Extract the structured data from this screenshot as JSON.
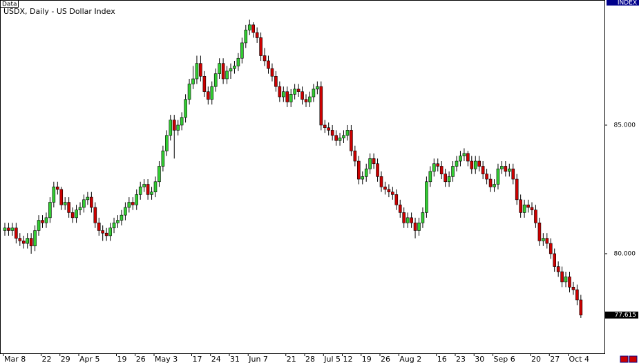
{
  "chart_data": {
    "type": "candlestick",
    "data_label": "Data",
    "title": "USDX, Daily - US Dollar Index",
    "axis_title": "INDEX",
    "last_price": 77.615,
    "up_color": "#32cd32",
    "down_color": "#cc0000",
    "ylim": [
      76.1,
      89.65
    ],
    "yticks": [
      {
        "value": 85,
        "label": "85.000"
      },
      {
        "value": 80,
        "label": "80.000"
      }
    ],
    "categories": [
      "Mar 8",
      null,
      null,
      null,
      null,
      null,
      null,
      null,
      null,
      null,
      "22",
      null,
      null,
      null,
      null,
      "29",
      null,
      null,
      null,
      null,
      "Apr 5",
      null,
      null,
      null,
      null,
      null,
      null,
      null,
      null,
      null,
      "19",
      null,
      null,
      null,
      null,
      "26",
      null,
      null,
      null,
      null,
      "May 3",
      null,
      null,
      null,
      null,
      null,
      null,
      null,
      null,
      null,
      "17",
      null,
      null,
      null,
      null,
      "24",
      null,
      null,
      null,
      null,
      "31",
      null,
      null,
      null,
      null,
      "Jun 7",
      null,
      null,
      null,
      null,
      null,
      null,
      null,
      null,
      null,
      "21",
      null,
      null,
      null,
      null,
      "28",
      null,
      null,
      null,
      null,
      "Jul 5",
      null,
      null,
      null,
      null,
      "12",
      null,
      null,
      null,
      null,
      "19",
      null,
      null,
      null,
      null,
      "26",
      null,
      null,
      null,
      null,
      "Aug 2",
      null,
      null,
      null,
      null,
      null,
      null,
      null,
      null,
      null,
      "16",
      null,
      null,
      null,
      null,
      "23",
      null,
      null,
      null,
      null,
      "30",
      null,
      null,
      null,
      null,
      "Sep 6",
      null,
      null,
      null,
      null,
      null,
      null,
      null,
      null,
      null,
      "20",
      null,
      null,
      null,
      null,
      "27",
      null,
      null,
      null,
      null,
      "Oct 4",
      null,
      null,
      null
    ],
    "ohlc": [
      [
        80.9,
        81.2,
        80.7,
        81.0
      ],
      [
        81.0,
        81.2,
        80.7,
        80.9
      ],
      [
        80.9,
        81.2,
        80.7,
        81.0
      ],
      [
        81.0,
        81.2,
        80.4,
        80.6
      ],
      [
        80.6,
        80.8,
        80.3,
        80.5
      ],
      [
        80.5,
        80.7,
        80.2,
        80.4
      ],
      [
        80.4,
        80.8,
        80.2,
        80.6
      ],
      [
        80.6,
        80.8,
        80.0,
        80.3
      ],
      [
        80.3,
        81.1,
        80.1,
        80.9
      ],
      [
        80.9,
        81.5,
        80.7,
        81.3
      ],
      [
        81.3,
        81.5,
        81.0,
        81.2
      ],
      [
        81.2,
        81.6,
        81.0,
        81.4
      ],
      [
        81.4,
        82.2,
        81.2,
        82.0
      ],
      [
        82.0,
        82.8,
        81.8,
        82.6
      ],
      [
        82.6,
        82.8,
        82.3,
        82.5
      ],
      [
        82.5,
        82.6,
        81.7,
        81.9
      ],
      [
        81.9,
        82.2,
        81.7,
        82.0
      ],
      [
        82.0,
        82.2,
        81.4,
        81.6
      ],
      [
        81.6,
        81.8,
        81.2,
        81.4
      ],
      [
        81.4,
        81.9,
        81.2,
        81.7
      ],
      [
        81.7,
        82.0,
        81.5,
        81.8
      ],
      [
        81.8,
        82.3,
        81.6,
        82.1
      ],
      [
        82.1,
        82.4,
        81.9,
        82.2
      ],
      [
        82.2,
        82.4,
        81.6,
        81.8
      ],
      [
        81.8,
        82.0,
        81.0,
        81.2
      ],
      [
        81.2,
        81.4,
        80.7,
        80.9
      ],
      [
        80.9,
        81.1,
        80.5,
        80.8
      ],
      [
        80.8,
        81.0,
        80.5,
        80.7
      ],
      [
        80.7,
        81.2,
        80.5,
        81.0
      ],
      [
        81.0,
        81.4,
        80.8,
        81.2
      ],
      [
        81.2,
        81.5,
        81.0,
        81.3
      ],
      [
        81.3,
        81.7,
        81.1,
        81.5
      ],
      [
        81.5,
        82.0,
        81.3,
        81.8
      ],
      [
        81.8,
        82.2,
        81.6,
        82.0
      ],
      [
        82.0,
        82.2,
        81.7,
        81.9
      ],
      [
        81.9,
        82.5,
        81.7,
        82.3
      ],
      [
        82.3,
        82.8,
        82.1,
        82.6
      ],
      [
        82.6,
        82.9,
        82.4,
        82.7
      ],
      [
        82.7,
        82.9,
        82.1,
        82.3
      ],
      [
        82.3,
        82.6,
        82.1,
        82.4
      ],
      [
        82.4,
        83.0,
        82.2,
        82.8
      ],
      [
        82.8,
        83.6,
        82.6,
        83.4
      ],
      [
        83.4,
        84.2,
        83.2,
        84.0
      ],
      [
        84.0,
        84.8,
        83.8,
        84.6
      ],
      [
        84.6,
        85.4,
        84.4,
        85.2
      ],
      [
        85.2,
        85.4,
        83.7,
        84.8
      ],
      [
        84.8,
        85.2,
        84.6,
        85.0
      ],
      [
        85.0,
        85.5,
        84.8,
        85.3
      ],
      [
        85.3,
        86.2,
        85.1,
        86.0
      ],
      [
        86.0,
        86.8,
        85.8,
        86.6
      ],
      [
        86.6,
        87.3,
        86.4,
        86.8
      ],
      [
        86.8,
        87.7,
        86.6,
        87.4
      ],
      [
        87.4,
        87.7,
        86.7,
        86.9
      ],
      [
        86.9,
        87.1,
        86.1,
        86.3
      ],
      [
        86.3,
        86.5,
        85.8,
        86.0
      ],
      [
        86.0,
        86.7,
        85.8,
        86.5
      ],
      [
        86.5,
        87.2,
        86.3,
        87.0
      ],
      [
        87.0,
        87.6,
        86.8,
        87.4
      ],
      [
        87.4,
        87.6,
        86.6,
        86.8
      ],
      [
        86.8,
        87.3,
        86.6,
        87.1
      ],
      [
        87.1,
        87.4,
        86.8,
        87.2
      ],
      [
        87.2,
        87.5,
        87.0,
        87.3
      ],
      [
        87.3,
        87.8,
        87.1,
        87.6
      ],
      [
        87.6,
        88.4,
        87.4,
        88.2
      ],
      [
        88.2,
        88.9,
        88.0,
        88.7
      ],
      [
        88.7,
        89.1,
        88.5,
        88.9
      ],
      [
        88.9,
        89.0,
        88.4,
        88.6
      ],
      [
        88.6,
        88.8,
        88.2,
        88.4
      ],
      [
        88.4,
        88.6,
        87.5,
        87.7
      ],
      [
        87.7,
        88.0,
        87.3,
        87.5
      ],
      [
        87.5,
        87.7,
        87.0,
        87.2
      ],
      [
        87.2,
        87.4,
        86.7,
        86.9
      ],
      [
        86.9,
        87.1,
        86.3,
        86.5
      ],
      [
        86.5,
        86.7,
        85.9,
        86.1
      ],
      [
        86.1,
        86.5,
        85.9,
        86.3
      ],
      [
        86.3,
        86.5,
        85.7,
        85.9
      ],
      [
        85.9,
        86.4,
        85.7,
        86.2
      ],
      [
        86.2,
        86.6,
        86.0,
        86.4
      ],
      [
        86.4,
        86.6,
        86.1,
        86.3
      ],
      [
        86.3,
        86.5,
        85.8,
        86.0
      ],
      [
        86.0,
        86.2,
        85.7,
        85.9
      ],
      [
        85.9,
        86.3,
        85.7,
        86.1
      ],
      [
        86.1,
        86.6,
        85.9,
        86.4
      ],
      [
        86.4,
        86.7,
        86.2,
        86.5
      ],
      [
        86.5,
        86.7,
        84.8,
        85.0
      ],
      [
        85.0,
        85.2,
        84.7,
        84.9
      ],
      [
        84.9,
        85.1,
        84.6,
        84.8
      ],
      [
        84.8,
        85.0,
        84.4,
        84.6
      ],
      [
        84.6,
        84.8,
        84.2,
        84.4
      ],
      [
        84.4,
        84.7,
        84.2,
        84.5
      ],
      [
        84.5,
        84.8,
        84.3,
        84.6
      ],
      [
        84.6,
        85.0,
        84.4,
        84.8
      ],
      [
        84.8,
        85.0,
        83.8,
        84.0
      ],
      [
        84.0,
        84.2,
        83.4,
        83.6
      ],
      [
        83.6,
        83.8,
        82.7,
        82.9
      ],
      [
        82.9,
        83.2,
        82.7,
        83.0
      ],
      [
        83.0,
        83.5,
        82.8,
        83.3
      ],
      [
        83.3,
        83.9,
        83.1,
        83.7
      ],
      [
        83.7,
        83.9,
        83.3,
        83.5
      ],
      [
        83.5,
        83.7,
        82.8,
        83.0
      ],
      [
        83.0,
        83.2,
        82.4,
        82.6
      ],
      [
        82.6,
        82.8,
        82.3,
        82.5
      ],
      [
        82.5,
        82.7,
        82.2,
        82.4
      ],
      [
        82.4,
        82.6,
        82.1,
        82.3
      ],
      [
        82.3,
        82.5,
        81.7,
        81.9
      ],
      [
        81.9,
        82.1,
        81.4,
        81.6
      ],
      [
        81.6,
        81.8,
        81.0,
        81.2
      ],
      [
        81.2,
        81.6,
        81.0,
        81.4
      ],
      [
        81.4,
        81.6,
        81.0,
        81.2
      ],
      [
        81.2,
        81.4,
        80.6,
        80.9
      ],
      [
        80.9,
        81.4,
        80.7,
        81.2
      ],
      [
        81.2,
        81.8,
        81.0,
        81.6
      ],
      [
        81.6,
        83.0,
        81.4,
        82.8
      ],
      [
        82.8,
        83.4,
        82.6,
        83.2
      ],
      [
        83.2,
        83.7,
        83.0,
        83.5
      ],
      [
        83.5,
        83.7,
        83.2,
        83.4
      ],
      [
        83.4,
        83.6,
        82.9,
        83.1
      ],
      [
        83.1,
        83.3,
        82.6,
        82.8
      ],
      [
        82.8,
        83.2,
        82.6,
        83.0
      ],
      [
        83.0,
        83.6,
        82.8,
        83.4
      ],
      [
        83.4,
        83.8,
        83.2,
        83.6
      ],
      [
        83.6,
        84.0,
        83.4,
        83.8
      ],
      [
        83.8,
        84.1,
        83.6,
        83.9
      ],
      [
        83.9,
        84.0,
        83.4,
        83.6
      ],
      [
        83.6,
        83.8,
        83.1,
        83.3
      ],
      [
        83.3,
        83.8,
        83.1,
        83.6
      ],
      [
        83.6,
        83.8,
        83.2,
        83.4
      ],
      [
        83.4,
        83.6,
        82.9,
        83.1
      ],
      [
        83.1,
        83.3,
        82.7,
        82.9
      ],
      [
        82.9,
        83.1,
        82.4,
        82.6
      ],
      [
        82.6,
        82.9,
        82.4,
        82.7
      ],
      [
        82.7,
        83.5,
        82.5,
        83.3
      ],
      [
        83.3,
        83.6,
        83.1,
        83.4
      ],
      [
        83.4,
        83.6,
        83.0,
        83.2
      ],
      [
        83.2,
        83.5,
        83.0,
        83.3
      ],
      [
        83.3,
        83.5,
        82.7,
        82.9
      ],
      [
        82.9,
        83.1,
        81.9,
        82.1
      ],
      [
        82.1,
        82.3,
        81.4,
        81.6
      ],
      [
        81.6,
        82.1,
        81.4,
        81.9
      ],
      [
        81.9,
        82.1,
        81.6,
        81.8
      ],
      [
        81.8,
        82.0,
        81.5,
        81.7
      ],
      [
        81.7,
        81.9,
        81.0,
        81.2
      ],
      [
        81.2,
        81.4,
        80.3,
        80.5
      ],
      [
        80.5,
        80.8,
        80.3,
        80.6
      ],
      [
        80.6,
        80.8,
        80.2,
        80.4
      ],
      [
        80.4,
        80.6,
        79.8,
        80.0
      ],
      [
        80.0,
        80.2,
        79.3,
        79.5
      ],
      [
        79.5,
        79.7,
        79.1,
        79.3
      ],
      [
        79.3,
        79.5,
        78.7,
        78.9
      ],
      [
        78.9,
        79.3,
        78.7,
        79.1
      ],
      [
        79.1,
        79.3,
        78.5,
        78.7
      ],
      [
        78.7,
        78.9,
        78.4,
        78.6
      ],
      [
        78.6,
        78.8,
        78.0,
        78.2
      ],
      [
        78.2,
        78.4,
        77.5,
        77.615
      ]
    ]
  }
}
